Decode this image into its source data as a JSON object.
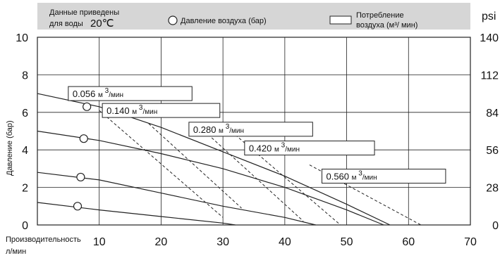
{
  "chart_data": {
    "type": "line",
    "header": {
      "note_line1": "Данные приведены",
      "note_line2": "для воды",
      "temperature": "20℃",
      "legend_pressure": "Давление воздуха (бар)",
      "legend_consumption_line1": "Потребление",
      "legend_consumption_line2": "воздуха (м³/ мин)"
    },
    "xlabel_line1": "Производительность",
    "xlabel_line2": "л/мин",
    "ylabel_left": "Давление (бар)",
    "ylabel_right": "psi",
    "xlim": [
      0,
      70
    ],
    "ylim": [
      0,
      10
    ],
    "x_ticks": [
      "10",
      "20",
      "30",
      "40",
      "50",
      "60",
      "70"
    ],
    "y_ticks_left": [
      "0",
      "2",
      "4",
      "6",
      "8",
      "10"
    ],
    "y_ticks_right": [
      "0",
      "28",
      "56",
      "84",
      "112",
      "140"
    ],
    "y_zero_label": "0",
    "grid": true,
    "pressure_curves": [
      {
        "start_pressure": 7.0,
        "marker": {
          "x": 8.0,
          "y": 6.3
        },
        "points": [
          [
            0,
            7.0
          ],
          [
            10,
            6.3
          ],
          [
            20,
            5.2
          ],
          [
            30,
            3.9
          ],
          [
            40,
            2.6
          ],
          [
            50,
            1.1
          ],
          [
            57,
            0
          ]
        ]
      },
      {
        "start_pressure": 5.0,
        "marker": {
          "x": 7.5,
          "y": 4.6
        },
        "points": [
          [
            0,
            5.0
          ],
          [
            10,
            4.5
          ],
          [
            20,
            3.8
          ],
          [
            30,
            3.0
          ],
          [
            40,
            2.0
          ],
          [
            50,
            0.8
          ],
          [
            56,
            0
          ]
        ]
      },
      {
        "start_pressure": 2.8,
        "marker": {
          "x": 7.0,
          "y": 2.55
        },
        "points": [
          [
            0,
            2.8
          ],
          [
            10,
            2.4
          ],
          [
            20,
            1.7
          ],
          [
            30,
            1.0
          ],
          [
            40,
            0.4
          ],
          [
            45,
            0
          ]
        ]
      },
      {
        "start_pressure": 1.2,
        "marker": {
          "x": 6.5,
          "y": 1.0
        },
        "points": [
          [
            0,
            1.2
          ],
          [
            10,
            0.8
          ],
          [
            20,
            0.45
          ],
          [
            30,
            0.1
          ],
          [
            32,
            0
          ]
        ]
      }
    ],
    "consumption_series": [
      {
        "label": "0.056",
        "unit": "м",
        "sup": "3",
        "unit2": "/мин",
        "x_anchor": 5.0,
        "y_anchor": 7.0,
        "points": [
          [
            10,
            6.1
          ],
          [
            30,
            0.4
          ]
        ],
        "box_width": 20
      },
      {
        "label": "0.140",
        "unit": "м",
        "sup": "3",
        "unit2": "/мин",
        "x_anchor": 10.5,
        "y_anchor": 6.1,
        "points": [
          [
            18,
            5.4
          ],
          [
            33,
            0.9
          ]
        ],
        "box_width": 19
      },
      {
        "label": "0.280",
        "unit": "м",
        "sup": "3",
        "unit2": "/мин",
        "x_anchor": 24.5,
        "y_anchor": 5.1,
        "points": [
          [
            27,
            5.0
          ],
          [
            43,
            0.2
          ]
        ],
        "box_width": 20
      },
      {
        "label": "0.420",
        "unit": "м",
        "sup": "3",
        "unit2": "/мин",
        "x_anchor": 33.5,
        "y_anchor": 4.1,
        "points": [
          [
            32,
            4.8
          ],
          [
            49,
            0
          ]
        ],
        "box_width": 21
      },
      {
        "label": "0.560",
        "unit": "м",
        "sup": "3",
        "unit2": "/мин",
        "x_anchor": 46.0,
        "y_anchor": 2.6,
        "points": [
          [
            44,
            3.2
          ],
          [
            62,
            0
          ]
        ],
        "box_width": 20
      }
    ],
    "colors": {
      "header_bg": "#d6d6d6",
      "grid": "#222222",
      "line": "#222222",
      "box_fill": "#ffffff"
    }
  }
}
